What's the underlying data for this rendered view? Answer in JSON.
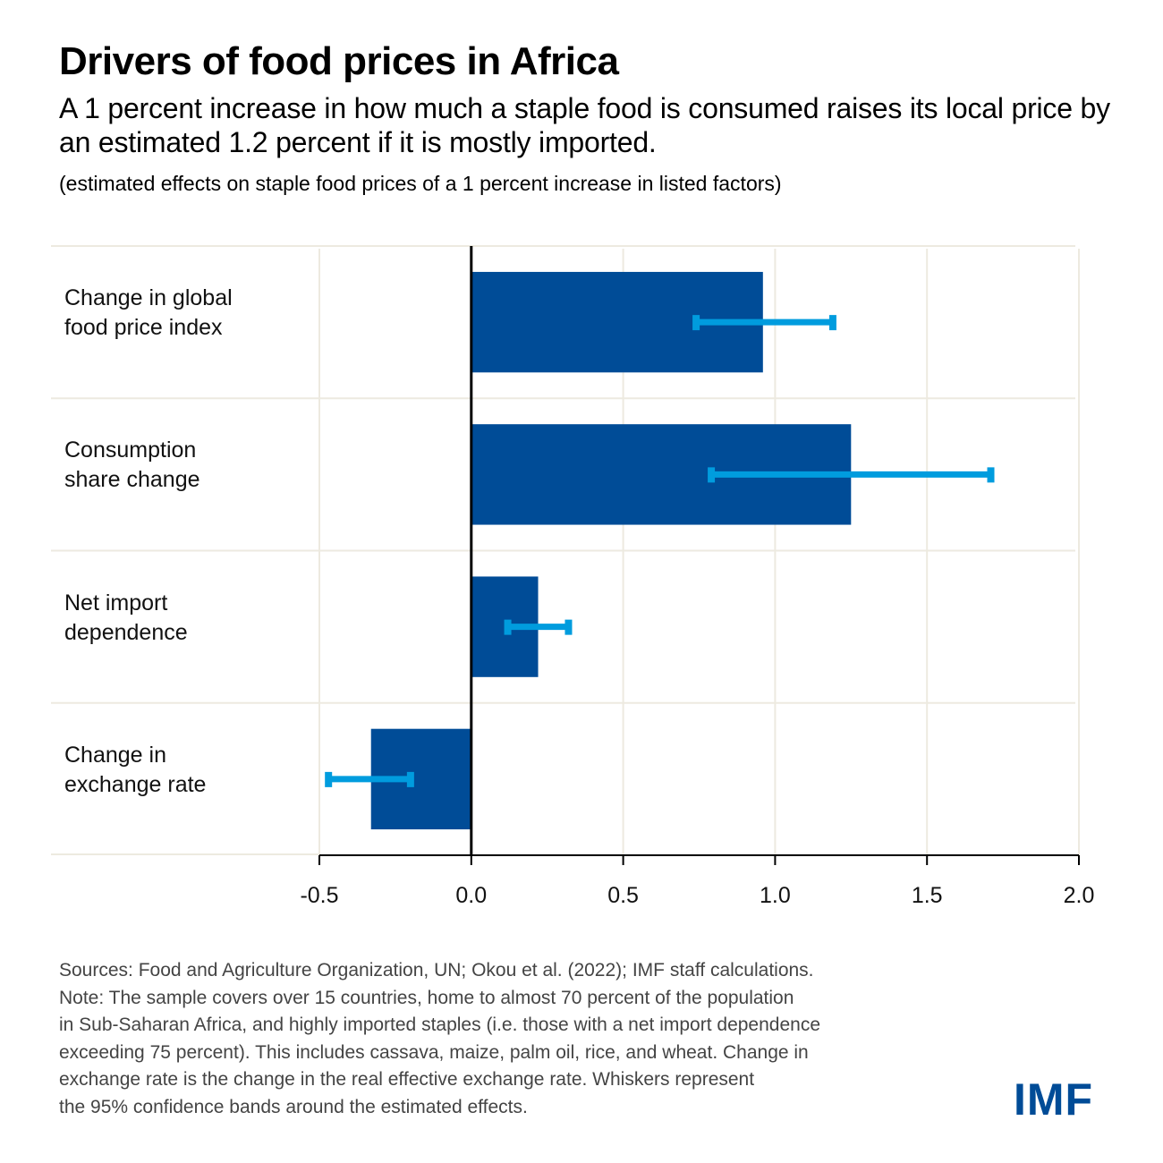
{
  "header": {
    "title": "Drivers of food prices in Africa",
    "subtitle": "A 1 percent increase in how much a staple food is consumed raises its local price by an estimated 1.2 percent if it is mostly imported.",
    "units_note": "(estimated effects on staple food prices of a 1 percent increase in listed factors)"
  },
  "chart_data": {
    "type": "bar",
    "orientation": "horizontal",
    "title": "Drivers of food prices in Africa",
    "xlabel": "",
    "ylabel": "",
    "xlim": [
      -0.5,
      2.0
    ],
    "xticks": [
      -0.5,
      0.0,
      0.5,
      1.0,
      1.5,
      2.0
    ],
    "xtick_labels": [
      "-0.5",
      "0.0",
      "0.5",
      "1.0",
      "1.5",
      "2.0"
    ],
    "grid": true,
    "categories": [
      "Change in global food price index",
      "Consumption share change",
      "Net import dependence",
      "Change in exchange rate"
    ],
    "category_lines": [
      [
        "Change in global",
        "food price index"
      ],
      [
        "Consumption",
        "share change"
      ],
      [
        "Net import",
        "dependence"
      ],
      [
        "Change in",
        "exchange rate"
      ]
    ],
    "values": [
      0.96,
      1.25,
      0.22,
      -0.33
    ],
    "ci_lower": [
      0.74,
      0.79,
      0.12,
      -0.47
    ],
    "ci_upper": [
      1.19,
      1.71,
      0.32,
      -0.2
    ],
    "ci_label": "95% confidence bands",
    "colors": {
      "bar": "#004C97",
      "whisker": "#009CDE",
      "grid": "#EDEAE0",
      "axis": "#000000"
    }
  },
  "footer": {
    "sources": "Sources: Food and Agriculture Organization, UN; Okou et al. (2022); IMF staff calculations.",
    "note": "Note: The sample covers over 15 countries, home to almost 70 percent of the population\n in Sub-Saharan Africa, and highly imported staples (i.e. those with a net import dependence\nexceeding 75 percent). This includes cassava, maize, palm oil, rice, and wheat. Change in\nexchange rate is the change in the real effective exchange rate. Whiskers represent\nthe 95% confidence bands around the estimated effects."
  },
  "logo": {
    "text": "IMF",
    "color": "#004C97"
  }
}
